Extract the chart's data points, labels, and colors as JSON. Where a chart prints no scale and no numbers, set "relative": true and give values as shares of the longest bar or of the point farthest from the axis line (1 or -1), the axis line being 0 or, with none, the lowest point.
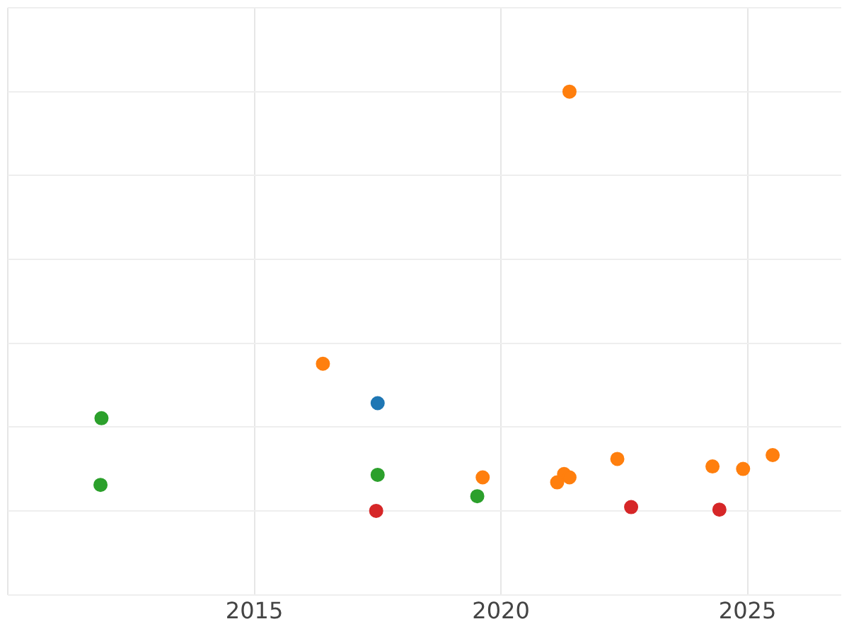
{
  "chart_data": {
    "type": "scatter",
    "relative": true,
    "grid": true,
    "legend": false,
    "marker": "circle",
    "xlim": [
      2010,
      2026.9
    ],
    "xticks": [
      {
        "value": 2010,
        "label": null
      },
      2015,
      2020,
      2025
    ],
    "series": [
      {
        "color": "#1f77b4",
        "x": [
          2017.5
        ],
        "values": [
          0.257
        ]
      },
      {
        "color": "#ff7f0e",
        "x": [
          2021.39,
          2016.39,
          2019.63,
          2021.28,
          2021.39,
          2021.14,
          2022.36,
          2024.29,
          2024.91,
          2025.51
        ],
        "values": [
          1.0,
          0.351,
          0.08,
          0.088,
          0.08,
          0.068,
          0.124,
          0.106,
          0.1,
          0.133
        ]
      },
      {
        "color": "#2ca02c",
        "x": [
          2011.9,
          2011.88,
          2017.5,
          2019.52
        ],
        "values": [
          0.221,
          0.062,
          0.086,
          0.035
        ]
      },
      {
        "color": "#d62728",
        "x": [
          2017.47,
          2022.64,
          2024.43
        ],
        "values": [
          0,
          0.009,
          0.003
        ]
      }
    ]
  }
}
